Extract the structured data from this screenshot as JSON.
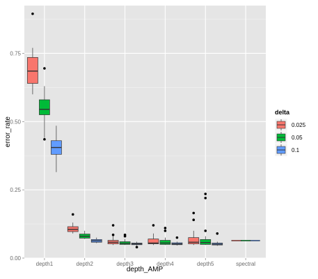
{
  "chart_data": {
    "type": "box",
    "xlabel": "depth_AMP",
    "ylabel": "error_rate",
    "categories": [
      "depth1",
      "depth2",
      "depth3",
      "depth4",
      "depth5",
      "spectral"
    ],
    "ylim": [
      0,
      0.925
    ],
    "y_ticks": [
      0.0,
      0.25,
      0.5,
      0.75
    ],
    "y_tick_labels": [
      "0.00",
      "0.25",
      "0.50",
      "0.75"
    ],
    "grid": true,
    "background": "#e5e5e5",
    "legend": {
      "title": "delta",
      "placement": "right",
      "entries": [
        "0.025",
        "0.05",
        "0.1"
      ]
    },
    "series": [
      {
        "name": "0.025",
        "color": "#f8766d",
        "boxes": [
          {
            "category": "depth1",
            "whisker_low": 0.6,
            "q1": 0.64,
            "median": 0.685,
            "q3": 0.735,
            "whisker_high": 0.77,
            "outliers": [
              0.895
            ]
          },
          {
            "category": "depth2",
            "whisker_low": 0.09,
            "q1": 0.097,
            "median": 0.105,
            "q3": 0.115,
            "whisker_high": 0.13,
            "outliers": [
              0.16
            ]
          },
          {
            "category": "depth3",
            "whisker_low": 0.048,
            "q1": 0.052,
            "median": 0.058,
            "q3": 0.065,
            "whisker_high": 0.08,
            "outliers": [
              0.12,
              0.085
            ]
          },
          {
            "category": "depth4",
            "whisker_low": 0.048,
            "q1": 0.052,
            "median": 0.055,
            "q3": 0.07,
            "whisker_high": 0.09,
            "outliers": [
              0.12
            ]
          },
          {
            "category": "depth5",
            "whisker_low": 0.048,
            "q1": 0.052,
            "median": 0.058,
            "q3": 0.075,
            "whisker_high": 0.1,
            "outliers": [
              0.165,
              0.14
            ]
          },
          {
            "category": "spectral",
            "whisker_low": 0.064,
            "q1": 0.064,
            "median": 0.064,
            "q3": 0.064,
            "whisker_high": 0.064,
            "outliers": []
          }
        ]
      },
      {
        "name": "0.05",
        "color": "#00ba38",
        "boxes": [
          {
            "category": "depth1",
            "whisker_low": 0.44,
            "q1": 0.525,
            "median": 0.545,
            "q3": 0.58,
            "whisker_high": 0.63,
            "outliers": [
              0.695,
              0.435
            ]
          },
          {
            "category": "depth2",
            "whisker_low": 0.07,
            "q1": 0.073,
            "median": 0.08,
            "q3": 0.088,
            "whisker_high": 0.1,
            "outliers": []
          },
          {
            "category": "depth3",
            "whisker_low": 0.048,
            "q1": 0.05,
            "median": 0.054,
            "q3": 0.06,
            "whisker_high": 0.07,
            "outliers": [
              0.085,
              0.08
            ]
          },
          {
            "category": "depth4",
            "whisker_low": 0.048,
            "q1": 0.05,
            "median": 0.055,
            "q3": 0.065,
            "whisker_high": 0.075,
            "outliers": [
              0.11,
              0.1
            ]
          },
          {
            "category": "depth5",
            "whisker_low": 0.048,
            "q1": 0.05,
            "median": 0.057,
            "q3": 0.068,
            "whisker_high": 0.08,
            "outliers": [
              0.235,
              0.22,
              0.1
            ]
          },
          {
            "category": "spectral",
            "whisker_low": 0.064,
            "q1": 0.064,
            "median": 0.064,
            "q3": 0.064,
            "whisker_high": 0.064,
            "outliers": []
          }
        ]
      },
      {
        "name": "0.1",
        "color": "#619cff",
        "boxes": [
          {
            "category": "depth1",
            "whisker_low": 0.315,
            "q1": 0.38,
            "median": 0.405,
            "q3": 0.43,
            "whisker_high": 0.485,
            "outliers": []
          },
          {
            "category": "depth2",
            "whisker_low": 0.055,
            "q1": 0.058,
            "median": 0.063,
            "q3": 0.068,
            "whisker_high": 0.075,
            "outliers": []
          },
          {
            "category": "depth3",
            "whisker_low": 0.046,
            "q1": 0.049,
            "median": 0.052,
            "q3": 0.055,
            "whisker_high": 0.06,
            "outliers": [
              0.04
            ]
          },
          {
            "category": "depth4",
            "whisker_low": 0.046,
            "q1": 0.049,
            "median": 0.052,
            "q3": 0.056,
            "whisker_high": 0.06,
            "outliers": [
              0.075
            ]
          },
          {
            "category": "depth5",
            "whisker_low": 0.045,
            "q1": 0.048,
            "median": 0.051,
            "q3": 0.055,
            "whisker_high": 0.06,
            "outliers": [
              0.09
            ]
          },
          {
            "category": "spectral",
            "whisker_low": 0.064,
            "q1": 0.064,
            "median": 0.064,
            "q3": 0.064,
            "whisker_high": 0.064,
            "outliers": []
          }
        ]
      }
    ]
  }
}
